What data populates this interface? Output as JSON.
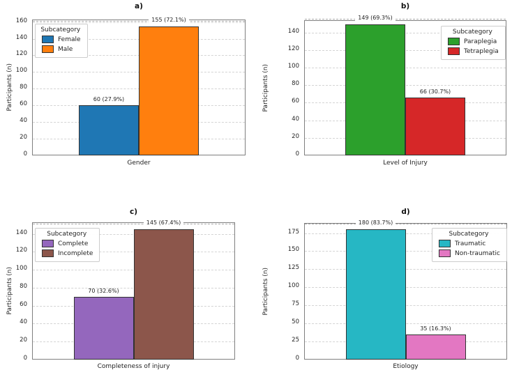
{
  "figure": {
    "background": "#ffffff",
    "text_color": "#1f1f1f",
    "spine_color": "#7f7f7f",
    "gridline_color": "#d4d4d4",
    "grid": "dashed-horizontal"
  },
  "chart_data": [
    {
      "type": "bar",
      "title": "a)",
      "xlabel": "Gender",
      "ylabel": "Participants (n)",
      "legend_title": "Subcategory",
      "legend_position": "top-left",
      "ylim": [
        0,
        163
      ],
      "yticks": [
        0,
        20,
        40,
        60,
        80,
        100,
        120,
        140,
        160
      ],
      "categories": [
        "Female",
        "Male"
      ],
      "values": [
        60,
        155
      ],
      "bar_labels": [
        "60 (27.9%)",
        "155 (72.1%)"
      ],
      "colors": [
        "#1f77b4",
        "#ff7f0e"
      ],
      "callout_index": 1
    },
    {
      "type": "bar",
      "title": "b)",
      "xlabel": "Level of Injury",
      "ylabel": "Participants (n)",
      "legend_title": "Subcategory",
      "legend_position": "top-right",
      "ylim": [
        0,
        154
      ],
      "yticks": [
        0,
        20,
        40,
        60,
        80,
        100,
        120,
        140
      ],
      "categories": [
        "Paraplegia",
        "Tetraplegia"
      ],
      "values": [
        149,
        66
      ],
      "bar_labels": [
        "149 (69.3%)",
        "66 (30.7%)"
      ],
      "colors": [
        "#2ca02c",
        "#d62728"
      ],
      "callout_index": 0
    },
    {
      "type": "bar",
      "title": "c)",
      "xlabel": "Completeness of injury",
      "ylabel": "Participants (n)",
      "legend_title": "Subcategory",
      "legend_position": "top-left",
      "ylim": [
        0,
        153
      ],
      "yticks": [
        0,
        20,
        40,
        60,
        80,
        100,
        120,
        140
      ],
      "categories": [
        "Complete",
        "Incomplete"
      ],
      "values": [
        70,
        145
      ],
      "bar_labels": [
        "70 (32.6%)",
        "145 (67.4%)"
      ],
      "colors": [
        "#9467bd",
        "#8c564b"
      ],
      "callout_index": 1
    },
    {
      "type": "bar",
      "title": "d)",
      "xlabel": "Etiology",
      "ylabel": "Participants (n)",
      "legend_title": "Subcategory",
      "legend_position": "top-right",
      "ylim": [
        0,
        189
      ],
      "yticks": [
        0,
        25,
        50,
        75,
        100,
        125,
        150,
        175
      ],
      "categories": [
        "Traumatic",
        "Non-traumatic"
      ],
      "values": [
        180,
        35
      ],
      "bar_labels": [
        "180 (83.7%)",
        "35 (16.3%)"
      ],
      "colors": [
        "#26b7c4",
        "#e377c2"
      ],
      "callout_index": 0
    }
  ]
}
